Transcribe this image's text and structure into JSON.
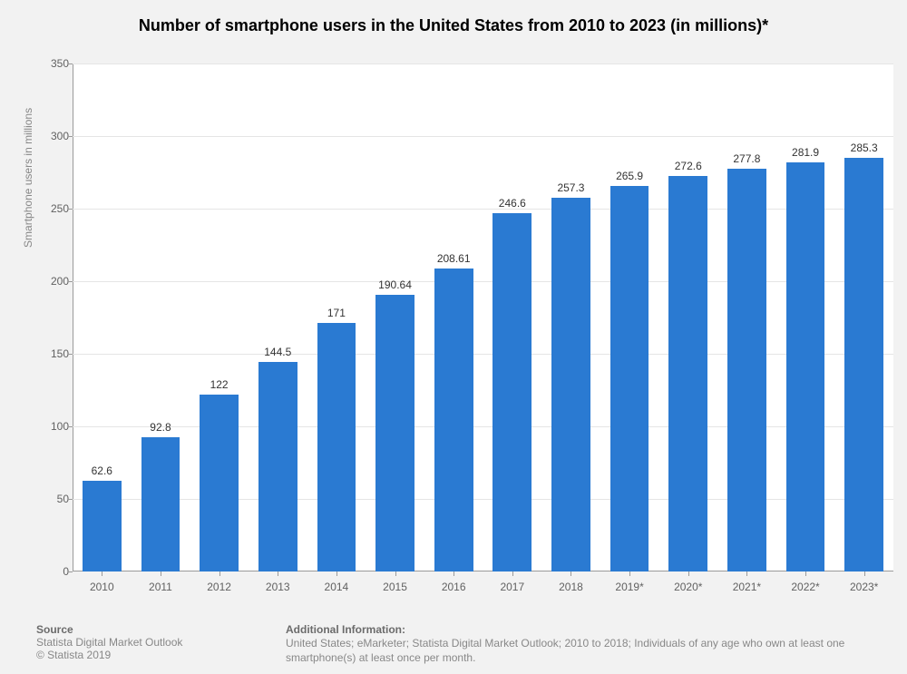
{
  "title": "Number of smartphone users in the United States from 2010 to 2023 (in millions)*",
  "title_fontsize": 18,
  "chart": {
    "type": "bar",
    "categories": [
      "2010",
      "2011",
      "2012",
      "2013",
      "2014",
      "2015",
      "2016",
      "2017",
      "2018",
      "2019*",
      "2020*",
      "2021*",
      "2022*",
      "2023*"
    ],
    "values": [
      62.6,
      92.8,
      122,
      144.5,
      171,
      190.64,
      208.61,
      246.6,
      257.3,
      265.9,
      272.6,
      277.8,
      281.9,
      285.3
    ],
    "bar_color": "#2a7ad2",
    "background_color": "#ffffff",
    "page_background_color": "#f2f2f2",
    "grid_color": "#e5e5e5",
    "axis_color": "#9a9a9a",
    "ylim": [
      0,
      350
    ],
    "ytick_step": 50,
    "ylabel": "Smartphone users in millions",
    "ylabel_fontsize": 12,
    "tick_fontsize": 12,
    "bar_label_fontsize": 12,
    "bar_width_ratio": 0.66
  },
  "footer": {
    "source_heading": "Source",
    "source_line1": "Statista Digital Market Outlook",
    "source_line2": "© Statista 2019",
    "info_heading": "Additional Information:",
    "info_text": "United States; eMarketer; Statista Digital Market Outlook; 2010 to 2018; Individuals of any age who own at least one smartphone(s) at least once per month.",
    "heading_fontsize": 12,
    "text_fontsize": 12
  }
}
